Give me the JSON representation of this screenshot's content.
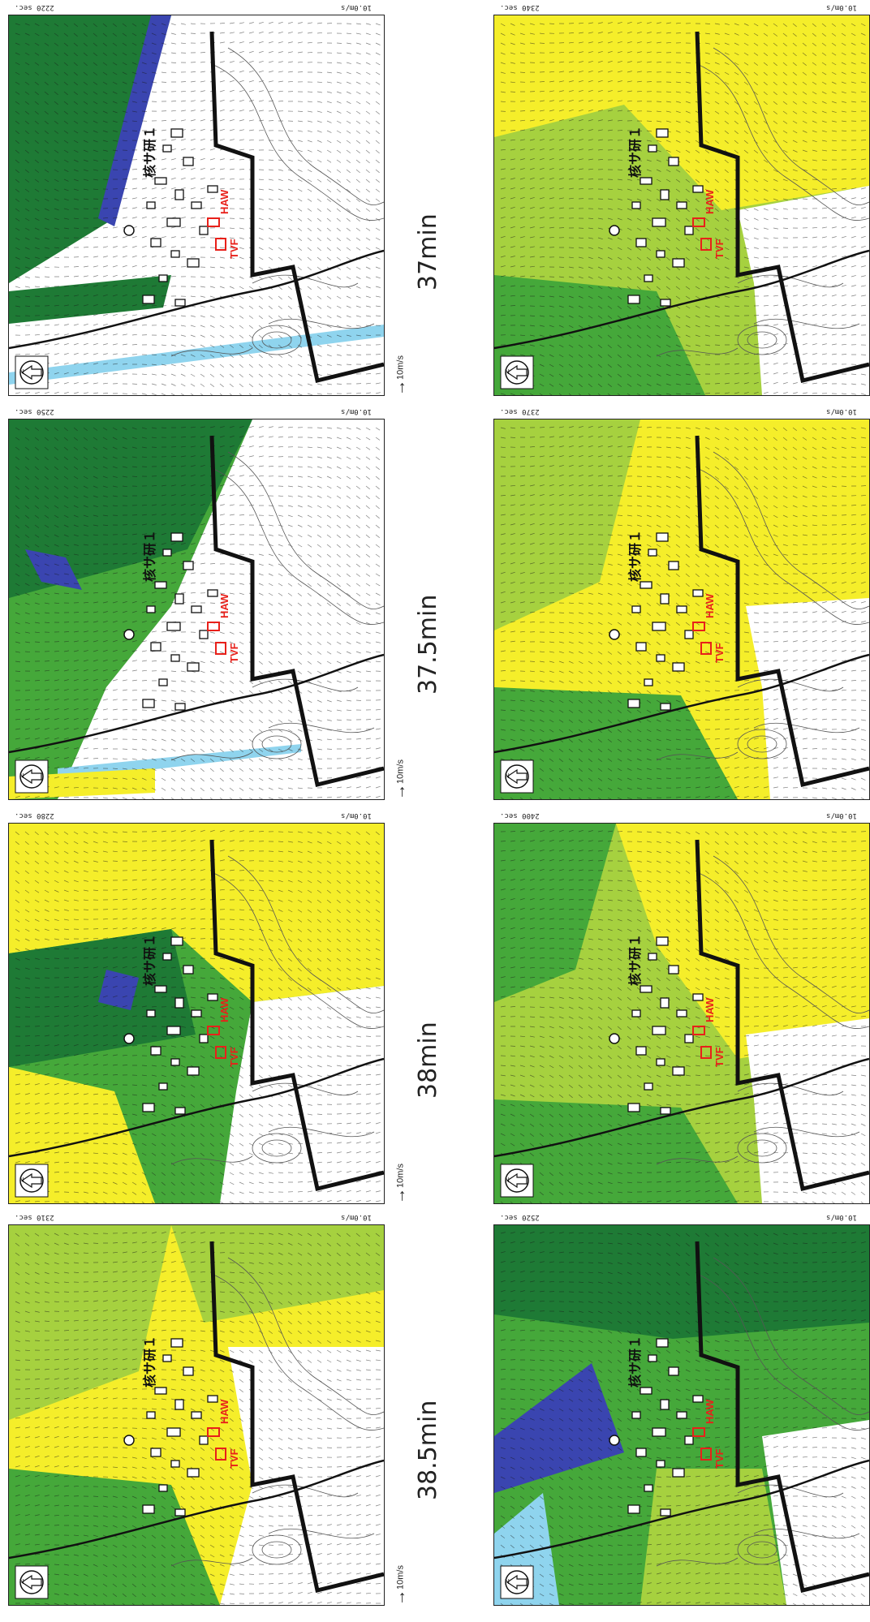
{
  "panels": [
    {
      "time_sec": "2220 sec.",
      "time_label": "37min",
      "scale_top": "10.0m/s",
      "scale_bottom": "10m/s",
      "site_label": "核サ研１",
      "facility_1": "HAW",
      "facility_2": "TVF",
      "north": "N"
    },
    {
      "time_sec": "2250 sec.",
      "time_label": "37.5min",
      "scale_top": "10.0m/s",
      "scale_bottom": "10m/s",
      "site_label": "核サ研１",
      "facility_1": "HAW",
      "facility_2": "TVF",
      "north": "N"
    },
    {
      "time_sec": "2280 sec.",
      "time_label": "38min",
      "scale_top": "10.0m/s",
      "scale_bottom": "10m/s",
      "site_label": "核サ研１",
      "facility_1": "HAW",
      "facility_2": "TVF",
      "north": "N"
    },
    {
      "time_sec": "2310 sec.",
      "time_label": "38.5min",
      "scale_top": "10.0m/s",
      "scale_bottom": "10m/s",
      "site_label": "核サ研１",
      "facility_1": "HAW",
      "facility_2": "TVF",
      "north": "N"
    },
    {
      "time_sec": "2340 sec.",
      "time_label": "",
      "scale_top": "10.0m/s",
      "scale_bottom": "",
      "site_label": "核サ研１",
      "facility_1": "HAW",
      "facility_2": "TVF",
      "north": "N"
    },
    {
      "time_sec": "2370 sec.",
      "time_label": "",
      "scale_top": "10.0m/s",
      "scale_bottom": "",
      "site_label": "核サ研１",
      "facility_1": "HAW",
      "facility_2": "TVF",
      "north": "N"
    },
    {
      "time_sec": "2400 sec.",
      "time_label": "",
      "scale_top": "10.0m/s",
      "scale_bottom": "",
      "site_label": "核サ研１",
      "facility_1": "HAW",
      "facility_2": "TVF",
      "north": "N"
    },
    {
      "time_sec": "2520 sec.",
      "time_label": "",
      "scale_top": "10.0m/s",
      "scale_bottom": "",
      "site_label": "核サ研１",
      "facility_1": "HAW",
      "facility_2": "TVF",
      "north": "N"
    }
  ],
  "colors": {
    "yellow": "#f5ee2a",
    "light_green": "#a6d13f",
    "green": "#45a83a",
    "dark_green": "#1e7a35",
    "blue": "#3a45b0",
    "light_blue": "#8fd4ee",
    "facility_red": "#e8201a"
  },
  "icons": [
    "north-arrow-icon",
    "site-marker-icon",
    "wind-vector-icon"
  ]
}
